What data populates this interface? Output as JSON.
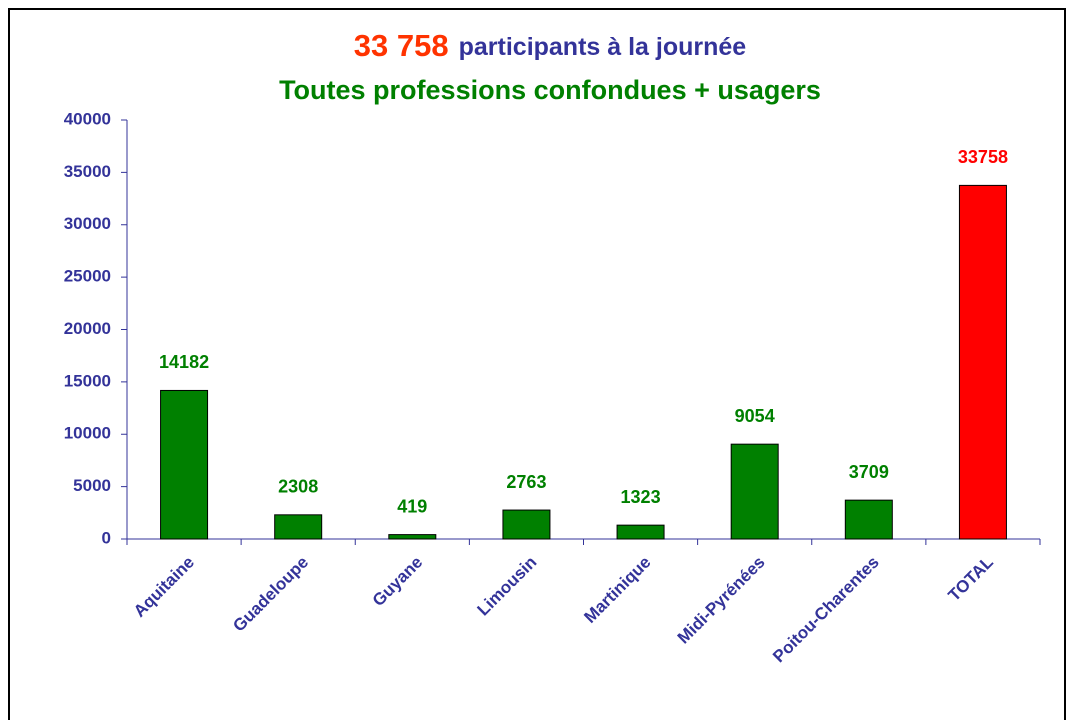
{
  "chart_data": {
    "type": "bar",
    "title_parts": [
      {
        "text": "33 758",
        "color": "#ff3300"
      },
      {
        "text": "participants à la journée",
        "color": "#333399"
      }
    ],
    "subtitle": "Toutes professions confondues + usagers",
    "subtitle_color": "#008000",
    "categories": [
      "Aquitaine",
      "Guadeloupe",
      "Guyane",
      "Limousin",
      "Martinique",
      "Midi-Pyrénées",
      "Poitou-Charentes",
      "TOTAL"
    ],
    "values": [
      14182,
      2308,
      419,
      2763,
      1323,
      9054,
      3709,
      33758
    ],
    "colors": [
      "#008000",
      "#008000",
      "#008000",
      "#008000",
      "#008000",
      "#008000",
      "#008000",
      "#ff0000"
    ],
    "ylim": [
      0,
      40000
    ],
    "yticks": [
      0,
      5000,
      10000,
      15000,
      20000,
      25000,
      30000,
      35000,
      40000
    ],
    "axis_color": "#333399",
    "grid": false
  }
}
